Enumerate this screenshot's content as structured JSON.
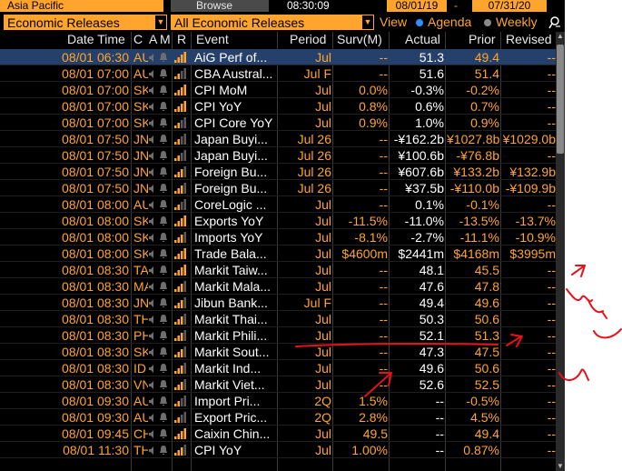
{
  "topbar": {
    "region": "Asia Pacific",
    "browse_label": "Browse",
    "time": "08:30:09",
    "date_from": "08/01/19",
    "date_sep": "-",
    "date_to": "07/31/20"
  },
  "filters": {
    "category": "Economic Releases",
    "releases": "All Economic Releases",
    "view_label": "View",
    "agenda_label": "Agenda",
    "weekly_label": "Weekly",
    "selected_view": "Agenda"
  },
  "columns": {
    "datetime": "Date Time",
    "country": "C",
    "alert": "A",
    "m": "M",
    "r": "R",
    "event": "Event",
    "period": "Period",
    "survey": "Surv(M)",
    "actual": "Actual",
    "prior": "Prior",
    "revised": "Revised"
  },
  "rows": [
    {
      "datetime": "08/01 06:30",
      "country": "AU",
      "event": "AiG Perf of...",
      "period": "Jul",
      "survey": "--",
      "actual": "51.3",
      "prior": "49.4",
      "revised": "--",
      "bars": 4
    },
    {
      "datetime": "08/01 07:00",
      "country": "AU",
      "event": "CBA Austral...",
      "period": "Jul F",
      "survey": "--",
      "actual": "51.6",
      "prior": "51.4",
      "revised": "--",
      "bars": 2
    },
    {
      "datetime": "08/01 07:00",
      "country": "SK",
      "event": "CPI MoM",
      "period": "Jul",
      "survey": "0.0%",
      "actual": "-0.3%",
      "prior": "-0.2%",
      "revised": "--",
      "bars": 4
    },
    {
      "datetime": "08/01 07:00",
      "country": "SK",
      "event": "CPI YoY",
      "period": "Jul",
      "survey": "0.8%",
      "actual": "0.6%",
      "prior": "0.7%",
      "revised": "--",
      "bars": 4
    },
    {
      "datetime": "08/01 07:00",
      "country": "SK",
      "event": "CPI Core YoY",
      "period": "Jul",
      "survey": "0.9%",
      "actual": "1.0%",
      "prior": "0.9%",
      "revised": "--",
      "bars": 2
    },
    {
      "datetime": "08/01 07:50",
      "country": "JN",
      "event": "Japan Buyi...",
      "period": "Jul 26",
      "survey": "--",
      "actual": "-¥162.2b",
      "prior": "¥1027.8b",
      "revised": "¥1029.0b",
      "bars": 2
    },
    {
      "datetime": "08/01 07:50",
      "country": "JN",
      "event": "Japan Buyi...",
      "period": "Jul 26",
      "survey": "--",
      "actual": "¥100.6b",
      "prior": "-¥76.8b",
      "revised": "--",
      "bars": 2
    },
    {
      "datetime": "08/01 07:50",
      "country": "JN",
      "event": "Foreign Bu...",
      "period": "Jul 26",
      "survey": "--",
      "actual": "¥607.6b",
      "prior": "¥133.2b",
      "revised": "¥132.9b",
      "bars": 3
    },
    {
      "datetime": "08/01 07:50",
      "country": "JN",
      "event": "Foreign Bu...",
      "period": "Jul 26",
      "survey": "--",
      "actual": "¥37.5b",
      "prior": "-¥110.0b",
      "revised": "-¥109.9b",
      "bars": 3
    },
    {
      "datetime": "08/01 08:00",
      "country": "AU",
      "event": "CoreLogic ...",
      "period": "Jul",
      "survey": "--",
      "actual": "0.1%",
      "prior": "-0.1%",
      "revised": "--",
      "bars": 2
    },
    {
      "datetime": "08/01 08:00",
      "country": "SK",
      "event": "Exports YoY",
      "period": "Jul",
      "survey": "-11.5%",
      "actual": "-11.0%",
      "prior": "-13.5%",
      "revised": "-13.7%",
      "bars": 4
    },
    {
      "datetime": "08/01 08:00",
      "country": "SK",
      "event": "Imports YoY",
      "period": "Jul",
      "survey": "-8.1%",
      "actual": "-2.7%",
      "prior": "-11.1%",
      "revised": "-10.9%",
      "bars": 3
    },
    {
      "datetime": "08/01 08:00",
      "country": "SK",
      "event": "Trade Bala...",
      "period": "Jul",
      "survey": "$4600m",
      "actual": "$2441m",
      "prior": "$4168m",
      "revised": "$3995m",
      "bars": 4
    },
    {
      "datetime": "08/01 08:30",
      "country": "TA",
      "event": "Markit Taiw...",
      "period": "Jul",
      "survey": "--",
      "actual": "48.1",
      "prior": "45.5",
      "revised": "--",
      "bars": 4
    },
    {
      "datetime": "08/01 08:30",
      "country": "MA",
      "event": "Markit Mala...",
      "period": "Jul",
      "survey": "--",
      "actual": "47.6",
      "prior": "47.8",
      "revised": "--",
      "bars": 3
    },
    {
      "datetime": "08/01 08:30",
      "country": "JN",
      "event": "Jibun Bank...",
      "period": "Jul F",
      "survey": "--",
      "actual": "49.4",
      "prior": "49.6",
      "revised": "--",
      "bars": 3
    },
    {
      "datetime": "08/01 08:30",
      "country": "TH",
      "event": "Markit Thai...",
      "period": "Jul",
      "survey": "--",
      "actual": "50.3",
      "prior": "50.6",
      "revised": "--",
      "bars": 3
    },
    {
      "datetime": "08/01 08:30",
      "country": "PH",
      "event": "Markit Phili...",
      "period": "Jul",
      "survey": "--",
      "actual": "52.1",
      "prior": "51.3",
      "revised": "--",
      "bars": 3
    },
    {
      "datetime": "08/01 08:30",
      "country": "SK",
      "event": "Markit Sout...",
      "period": "Jul",
      "survey": "--",
      "actual": "47.3",
      "prior": "47.5",
      "revised": "--",
      "bars": 3
    },
    {
      "datetime": "08/01 08:30",
      "country": "ID",
      "event": "Markit Ind...",
      "period": "Jul",
      "survey": "--",
      "actual": "49.6",
      "prior": "50.6",
      "revised": "--",
      "bars": 3
    },
    {
      "datetime": "08/01 08:30",
      "country": "VN",
      "event": "Markit Viet...",
      "period": "Jul",
      "survey": "--",
      "actual": "52.6",
      "prior": "52.5",
      "revised": "--",
      "bars": 3
    },
    {
      "datetime": "08/01 09:30",
      "country": "AU",
      "event": "Import Pri...",
      "period": "2Q",
      "survey": "1.5%",
      "actual": "--",
      "prior": "-0.5%",
      "revised": "--",
      "bars": 2
    },
    {
      "datetime": "08/01 09:30",
      "country": "AU",
      "event": "Export Pric...",
      "period": "2Q",
      "survey": "2.8%",
      "actual": "--",
      "prior": "4.5%",
      "revised": "--",
      "bars": 2
    },
    {
      "datetime": "08/01 09:45",
      "country": "CH",
      "event": "Caixin Chin...",
      "period": "Jul",
      "survey": "49.5",
      "actual": "--",
      "prior": "49.4",
      "revised": "--",
      "bars": 4
    },
    {
      "datetime": "08/01 11:30",
      "country": "TH",
      "event": "CPI YoY",
      "period": "Jul",
      "survey": "1.00%",
      "actual": "--",
      "prior": "0.87%",
      "revised": "--",
      "bars": 3
    }
  ],
  "colors": {
    "orange": "#ffa42c",
    "selected_row": "#25406a",
    "annotation_red": "#e8101a"
  },
  "icons": {
    "row_speaker": "speaker-icon",
    "row_bell": "bell-icon",
    "row_relevance": "relevance-bars-icon",
    "popout": "popout-icon"
  }
}
